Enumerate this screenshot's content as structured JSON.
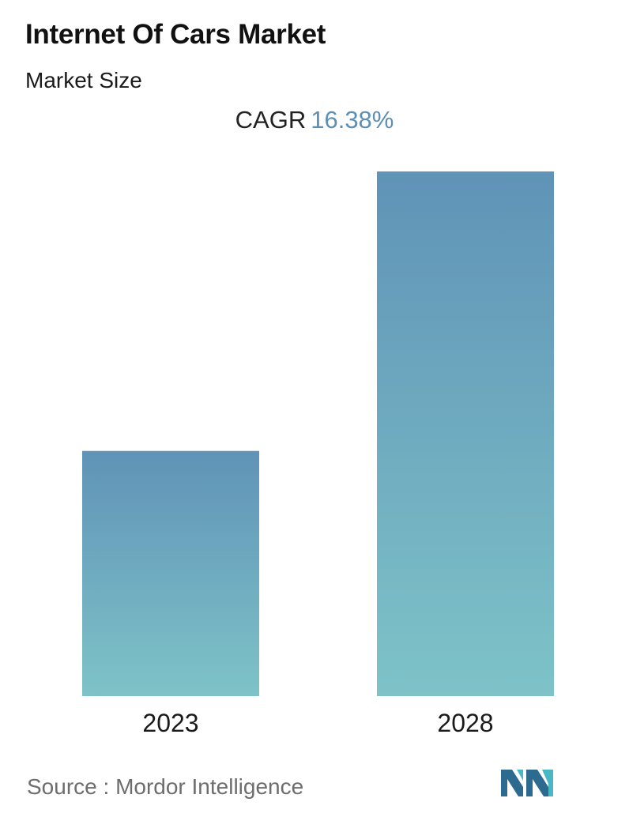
{
  "header": {
    "title": "Internet Of Cars Market",
    "subtitle": "Market Size"
  },
  "cagr": {
    "label": "CAGR",
    "value": "16.38%"
  },
  "chart_data": {
    "type": "bar",
    "categories": [
      "2023",
      "2028"
    ],
    "values": [
      1.0,
      2.14
    ],
    "title": "Internet Of Cars Market",
    "subtitle": "Market Size",
    "xlabel": "",
    "ylabel": "",
    "ylim": [
      0,
      2.14
    ],
    "grid": false,
    "legend": "none",
    "annotations": [
      "CAGR 16.38%"
    ],
    "colors": {
      "bar_top": "#6093b7",
      "bar_bottom": "#7ec3c8"
    }
  },
  "footer": {
    "source_label": "Source :",
    "source_name": "Mordor Intelligence",
    "logo_icon": "mordor-intelligence-logo-icon",
    "logo_colors": [
      "#2d6a8f",
      "#4ab7c4"
    ]
  }
}
